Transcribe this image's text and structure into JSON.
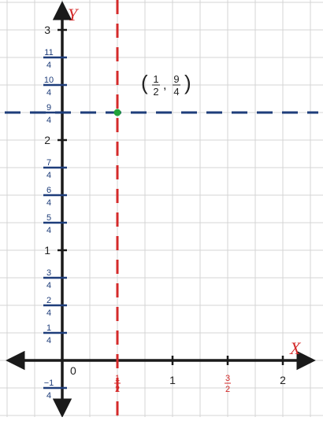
{
  "axes": {
    "x_label": "X",
    "y_label": "Y",
    "origin_label": "0",
    "x_range": [
      -0.5,
      2.25
    ],
    "y_range": [
      -0.5,
      3.25
    ],
    "grid_step_x": 0.25,
    "grid_step_y": 0.25
  },
  "x_ticks": [
    {
      "value": 0.5,
      "num": "1",
      "den": "2",
      "color": "#d42a2a"
    },
    {
      "value": 1,
      "text": "1",
      "color": "#222222"
    },
    {
      "value": 1.5,
      "num": "3",
      "den": "2",
      "color": "#d42a2a"
    },
    {
      "value": 2,
      "text": "2",
      "color": "#222222"
    }
  ],
  "y_ticks": [
    {
      "value": 3,
      "text": "3"
    },
    {
      "value": 2.75,
      "num": "11",
      "den": "4"
    },
    {
      "value": 2.5,
      "num": "10",
      "den": "4"
    },
    {
      "value": 2.25,
      "num": "9",
      "den": "4"
    },
    {
      "value": 2,
      "text": "2"
    },
    {
      "value": 1.75,
      "num": "7",
      "den": "4"
    },
    {
      "value": 1.5,
      "num": "6",
      "den": "4"
    },
    {
      "value": 1.25,
      "num": "5",
      "den": "4"
    },
    {
      "value": 1,
      "text": "1"
    },
    {
      "value": 0.75,
      "num": "3",
      "den": "4"
    },
    {
      "value": 0.5,
      "num": "2",
      "den": "4"
    },
    {
      "value": 0.25,
      "num": "1",
      "den": "4"
    },
    {
      "value": -0.25,
      "num": "−1",
      "den": "4"
    }
  ],
  "vertical_line": {
    "x": 0.5,
    "color": "#d42a2a"
  },
  "horizontal_line": {
    "y": 2.25,
    "color": "#1e3d7a"
  },
  "point": {
    "x": 0.5,
    "y": 2.25,
    "color": "#22a33a",
    "label_x_num": "1",
    "label_x_den": "2",
    "label_y_num": "9",
    "label_y_den": "4"
  },
  "colors": {
    "grid": "#d4d4d4",
    "axis": "#1a1a1a",
    "y_tick_fraction": "#1e3d7a",
    "axis_label": "#d42a2a"
  }
}
